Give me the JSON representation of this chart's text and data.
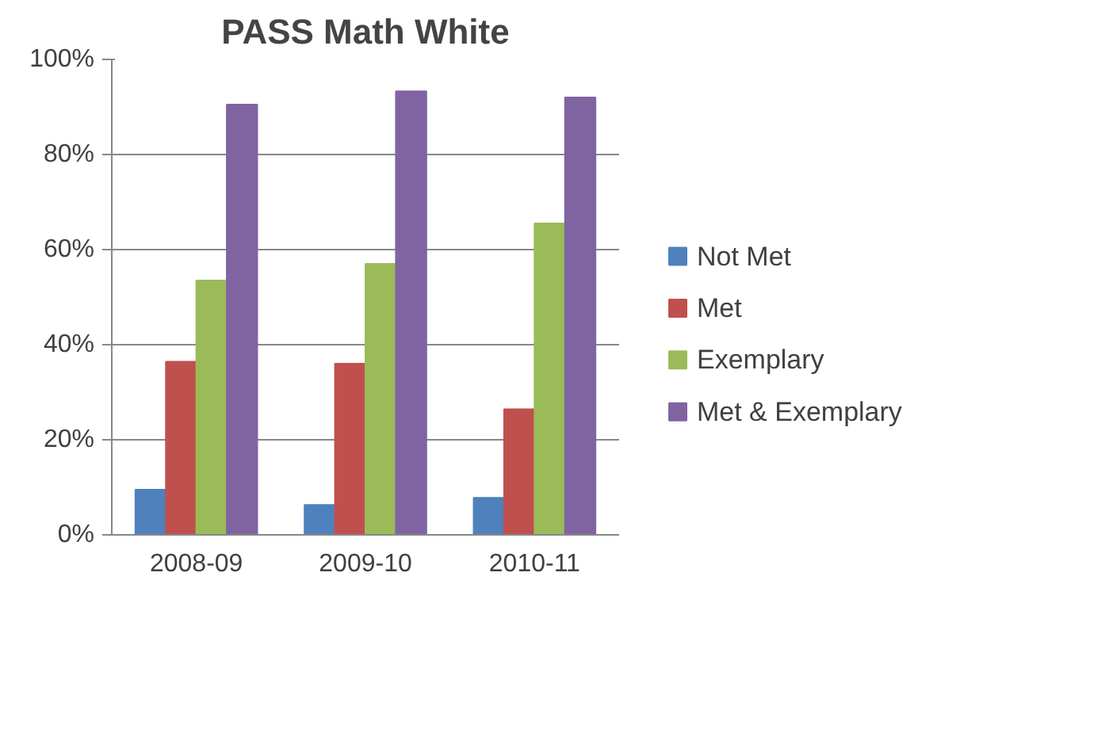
{
  "chart_data": {
    "type": "bar",
    "title": "PASS Math White",
    "categories": [
      "2008-09",
      "2009-10",
      "2010-11"
    ],
    "series": [
      {
        "name": "Not Met",
        "color": "#4f81bd",
        "values": [
          9.5,
          6.3,
          7.8
        ]
      },
      {
        "name": "Met",
        "color": "#c0504d",
        "values": [
          36.4,
          36,
          26.4
        ]
      },
      {
        "name": "Exemplary",
        "color": "#9bbb59",
        "values": [
          53.5,
          57,
          65.5
        ]
      },
      {
        "name": "Met & Exemplary",
        "color": "#8064a2",
        "values": [
          90.5,
          93.3,
          92
        ]
      }
    ],
    "ylim": [
      0,
      100
    ],
    "yticks": [
      {
        "value": 0,
        "label": "0%"
      },
      {
        "value": 20,
        "label": "20%"
      },
      {
        "value": 40,
        "label": "40%"
      },
      {
        "value": 60,
        "label": "60%"
      },
      {
        "value": 80,
        "label": "80%"
      },
      {
        "value": 100,
        "label": "100%"
      }
    ],
    "grid": "y",
    "legend": "right"
  }
}
